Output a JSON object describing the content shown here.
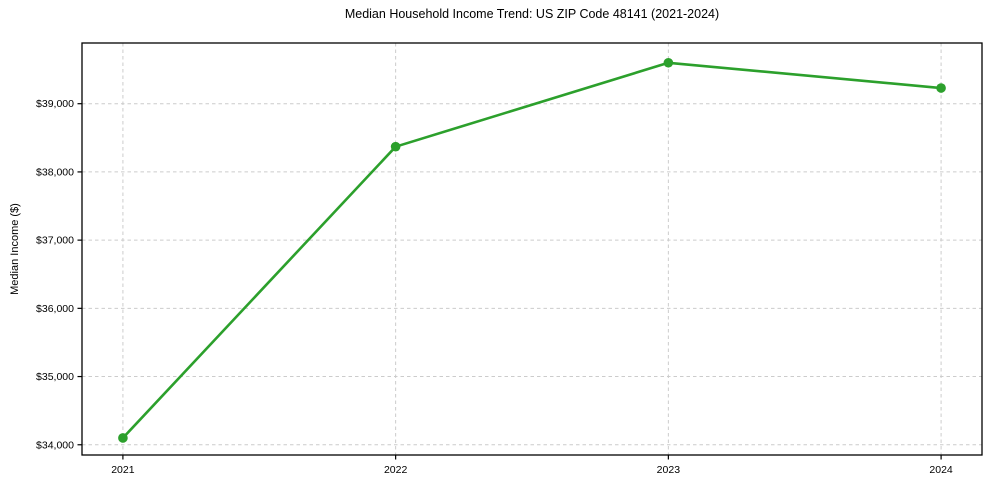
{
  "chart_data": {
    "type": "line",
    "title": "Median Household Income Trend: US ZIP Code 48141 (2021-2024)",
    "xlabel": "",
    "ylabel": "Median Income ($)",
    "x": [
      2021,
      2022,
      2023,
      2024
    ],
    "values": [
      34100,
      38370,
      39600,
      39230
    ],
    "xtick_labels": [
      "2021",
      "2022",
      "2023",
      "2024"
    ],
    "ytick_values": [
      34000,
      35000,
      36000,
      37000,
      38000,
      39000
    ],
    "ytick_labels": [
      "$34,000",
      "$35,000",
      "$36,000",
      "$37,000",
      "$38,000",
      "$39,000"
    ],
    "xlim": [
      2020.85,
      2024.15
    ],
    "ylim": [
      33850,
      39890
    ],
    "grid": "dashed, both axes",
    "legend": "none",
    "marker": "circle",
    "colors": {
      "line": "#2ca02c",
      "marker": "#2ca02c",
      "grid": "#cccccc",
      "axis": "#000000",
      "text": "#000000",
      "background": "#ffffff"
    }
  }
}
